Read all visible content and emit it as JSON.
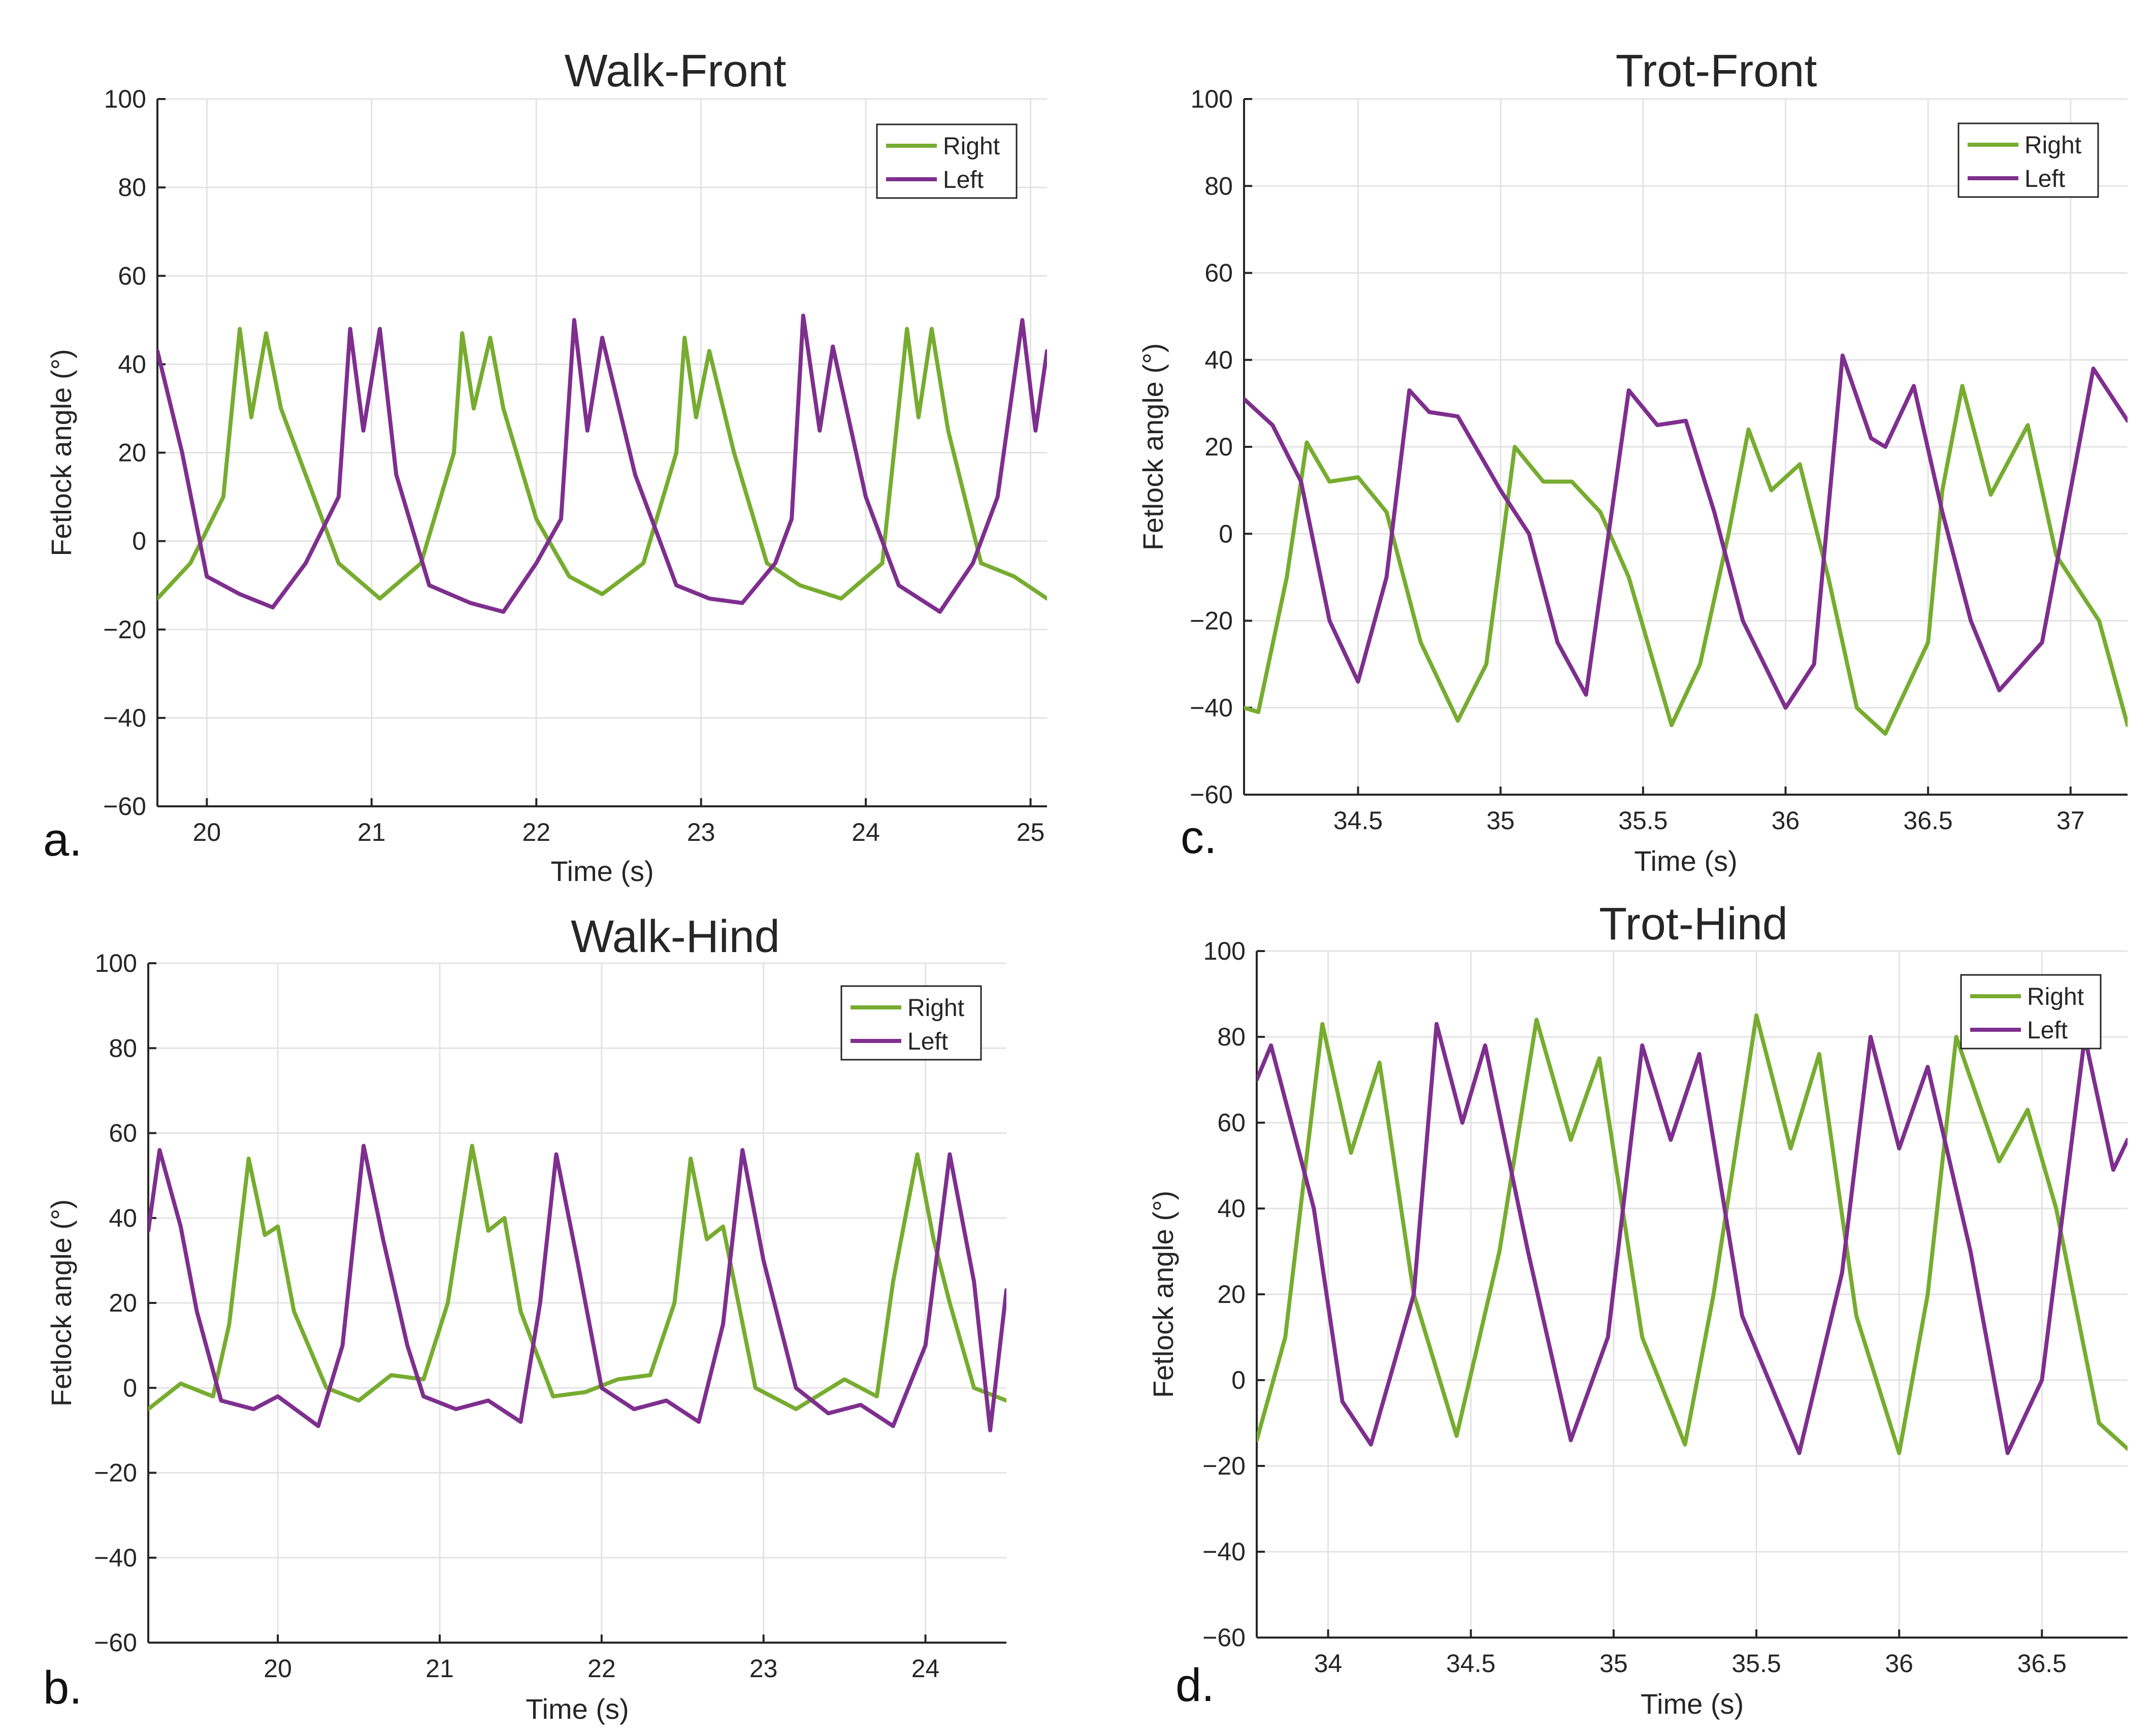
{
  "figure": {
    "series_colors": {
      "Right": "#77ac30",
      "Left": "#7e2f8e"
    }
  },
  "chart_data": [
    {
      "id": "a",
      "type": "line",
      "panel_label": "a.",
      "title": "Walk-Front",
      "xlabel": "Time (s)",
      "ylabel": "Fetlock angle (°)",
      "xlim": [
        19.7,
        25.1
      ],
      "ylim": [
        -60,
        100
      ],
      "xticks": [
        20,
        21,
        22,
        23,
        24,
        25
      ],
      "xtick_labels": [
        "20",
        "21",
        "22",
        "23",
        "24",
        "25"
      ],
      "yticks": [
        -60,
        -40,
        -20,
        0,
        20,
        40,
        60,
        80,
        100
      ],
      "ytick_labels": [
        "−60",
        "−40",
        "−20",
        "0",
        "20",
        "40",
        "60",
        "80",
        "100"
      ],
      "grid": true,
      "legend": {
        "position": "top-right",
        "entries": [
          "Right",
          "Left"
        ]
      },
      "series": [
        {
          "name": "Right",
          "color": "#77ac30",
          "x": [
            19.7,
            19.9,
            20.1,
            20.2,
            20.27,
            20.36,
            20.45,
            20.6,
            20.8,
            21.05,
            21.3,
            21.5,
            21.55,
            21.62,
            21.72,
            21.8,
            22.0,
            22.2,
            22.4,
            22.65,
            22.85,
            22.9,
            22.97,
            23.05,
            23.2,
            23.4,
            23.6,
            23.85,
            24.1,
            24.25,
            24.32,
            24.4,
            24.5,
            24.7,
            24.9,
            25.1
          ],
          "y": [
            -13,
            -5,
            10,
            48,
            28,
            47,
            30,
            15,
            -5,
            -13,
            -5,
            20,
            47,
            30,
            46,
            30,
            5,
            -8,
            -12,
            -5,
            20,
            46,
            28,
            43,
            20,
            -5,
            -10,
            -13,
            -5,
            48,
            28,
            48,
            25,
            -5,
            -8,
            -13
          ]
        },
        {
          "name": "Left",
          "color": "#7e2f8e",
          "x": [
            19.7,
            19.85,
            20.0,
            20.2,
            20.4,
            20.6,
            20.8,
            20.87,
            20.95,
            21.05,
            21.15,
            21.35,
            21.6,
            21.8,
            22.0,
            22.15,
            22.23,
            22.31,
            22.4,
            22.6,
            22.85,
            23.05,
            23.25,
            23.45,
            23.55,
            23.62,
            23.72,
            23.8,
            24.0,
            24.2,
            24.45,
            24.65,
            24.8,
            24.95,
            25.03,
            25.1
          ],
          "y": [
            43,
            20,
            -8,
            -12,
            -15,
            -5,
            10,
            48,
            25,
            48,
            15,
            -10,
            -14,
            -16,
            -5,
            5,
            50,
            25,
            46,
            15,
            -10,
            -13,
            -14,
            -5,
            5,
            51,
            25,
            44,
            10,
            -10,
            -16,
            -5,
            10,
            50,
            25,
            43
          ]
        }
      ]
    },
    {
      "id": "b",
      "type": "line",
      "panel_label": "b.",
      "title": "Walk-Hind",
      "xlabel": "Time (s)",
      "ylabel": "Fetlock angle (°)",
      "xlim": [
        19.2,
        24.5
      ],
      "ylim": [
        -60,
        100
      ],
      "xticks": [
        20,
        21,
        22,
        23,
        24
      ],
      "xtick_labels": [
        "20",
        "21",
        "22",
        "23",
        "24"
      ],
      "yticks": [
        -60,
        -40,
        -20,
        0,
        20,
        40,
        60,
        80,
        100
      ],
      "ytick_labels": [
        "−60",
        "−40",
        "−20",
        "0",
        "20",
        "40",
        "60",
        "80",
        "100"
      ],
      "grid": true,
      "legend": {
        "position": "top-right",
        "entries": [
          "Right",
          "Left"
        ]
      },
      "series": [
        {
          "name": "Right",
          "color": "#77ac30",
          "x": [
            19.2,
            19.4,
            19.6,
            19.7,
            19.82,
            19.92,
            20.0,
            20.1,
            20.3,
            20.5,
            20.7,
            20.9,
            21.05,
            21.2,
            21.3,
            21.4,
            21.5,
            21.7,
            21.9,
            22.1,
            22.3,
            22.45,
            22.55,
            22.65,
            22.75,
            22.95,
            23.2,
            23.5,
            23.7,
            23.8,
            23.95,
            24.05,
            24.15,
            24.3,
            24.5
          ],
          "y": [
            -5,
            1,
            -2,
            15,
            54,
            36,
            38,
            18,
            0,
            -3,
            3,
            2,
            20,
            57,
            37,
            40,
            18,
            -2,
            -1,
            2,
            3,
            20,
            54,
            35,
            38,
            0,
            -5,
            2,
            -2,
            25,
            55,
            35,
            20,
            0,
            -3
          ]
        },
        {
          "name": "Left",
          "color": "#7e2f8e",
          "x": [
            19.2,
            19.27,
            19.4,
            19.5,
            19.65,
            19.85,
            20.0,
            20.25,
            20.4,
            20.53,
            20.65,
            20.8,
            20.9,
            21.1,
            21.3,
            21.5,
            21.62,
            21.72,
            21.85,
            22.0,
            22.2,
            22.4,
            22.6,
            22.75,
            22.87,
            23.0,
            23.2,
            23.4,
            23.6,
            23.8,
            24.0,
            24.15,
            24.3,
            24.4,
            24.5
          ],
          "y": [
            37,
            56,
            38,
            18,
            -3,
            -5,
            -2,
            -9,
            10,
            57,
            35,
            10,
            -2,
            -5,
            -3,
            -8,
            20,
            55,
            30,
            0,
            -5,
            -3,
            -8,
            15,
            56,
            30,
            0,
            -6,
            -4,
            -9,
            10,
            55,
            25,
            -10,
            23
          ]
        }
      ]
    },
    {
      "id": "c",
      "type": "line",
      "panel_label": "c.",
      "title": "Trot-Front",
      "xlabel": "Time (s)",
      "ylabel": "Fetlock angle (°)",
      "xlim": [
        34.1,
        37.2
      ],
      "ylim": [
        -60,
        100
      ],
      "xticks": [
        34.5,
        35,
        35.5,
        36,
        36.5,
        37
      ],
      "xtick_labels": [
        "34.5",
        "35",
        "35.5",
        "36",
        "36.5",
        "37"
      ],
      "yticks": [
        -60,
        -40,
        -20,
        0,
        20,
        40,
        60,
        80,
        100
      ],
      "ytick_labels": [
        "−60",
        "−40",
        "−20",
        "0",
        "20",
        "40",
        "60",
        "80",
        "100"
      ],
      "grid": true,
      "legend": {
        "position": "top-right",
        "entries": [
          "Right",
          "Left"
        ]
      },
      "series": [
        {
          "name": "Right",
          "color": "#77ac30",
          "x": [
            34.1,
            34.15,
            34.25,
            34.32,
            34.4,
            34.5,
            34.6,
            34.72,
            34.85,
            34.95,
            35.05,
            35.15,
            35.25,
            35.35,
            35.45,
            35.6,
            35.7,
            35.8,
            35.87,
            35.95,
            36.05,
            36.15,
            36.25,
            36.35,
            36.5,
            36.55,
            36.62,
            36.72,
            36.85,
            36.95,
            37.1,
            37.2
          ],
          "y": [
            -40,
            -41,
            -10,
            21,
            12,
            13,
            5,
            -25,
            -43,
            -30,
            20,
            12,
            12,
            5,
            -10,
            -44,
            -30,
            0,
            24,
            10,
            16,
            -10,
            -40,
            -46,
            -25,
            10,
            34,
            9,
            25,
            -5,
            -20,
            -44
          ]
        },
        {
          "name": "Left",
          "color": "#7e2f8e",
          "x": [
            34.1,
            34.2,
            34.3,
            34.4,
            34.5,
            34.6,
            34.68,
            34.75,
            34.85,
            35.0,
            35.1,
            35.2,
            35.3,
            35.45,
            35.55,
            35.65,
            35.75,
            35.85,
            36.0,
            36.1,
            36.2,
            36.3,
            36.35,
            36.45,
            36.55,
            36.65,
            36.75,
            36.9,
            37.0,
            37.08,
            37.2
          ],
          "y": [
            31,
            25,
            12,
            -20,
            -34,
            -10,
            33,
            28,
            27,
            10,
            0,
            -25,
            -37,
            33,
            25,
            26,
            5,
            -20,
            -40,
            -30,
            41,
            22,
            20,
            34,
            5,
            -20,
            -36,
            -25,
            10,
            38,
            26
          ]
        }
      ]
    },
    {
      "id": "d",
      "type": "line",
      "panel_label": "d.",
      "title": "Trot-Hind",
      "xlabel": "Time (s)",
      "ylabel": "Fetlock angle (°)",
      "xlim": [
        33.75,
        36.8
      ],
      "ylim": [
        -60,
        100
      ],
      "xticks": [
        34,
        34.5,
        35,
        35.5,
        36,
        36.5
      ],
      "xtick_labels": [
        "34",
        "34.5",
        "35",
        "35.5",
        "36",
        "36.5"
      ],
      "yticks": [
        -60,
        -40,
        -20,
        0,
        20,
        40,
        60,
        80,
        100
      ],
      "ytick_labels": [
        "−60",
        "−40",
        "−20",
        "0",
        "20",
        "40",
        "60",
        "80",
        "100"
      ],
      "grid": true,
      "legend": {
        "position": "top-right",
        "entries": [
          "Right",
          "Left"
        ]
      },
      "series": [
        {
          "name": "Right",
          "color": "#77ac30",
          "x": [
            33.75,
            33.85,
            33.98,
            34.08,
            34.18,
            34.3,
            34.45,
            34.6,
            34.73,
            34.85,
            34.95,
            35.1,
            35.25,
            35.35,
            35.5,
            35.62,
            35.72,
            35.85,
            36.0,
            36.1,
            36.2,
            36.35,
            36.45,
            36.55,
            36.7,
            36.8
          ],
          "y": [
            -14,
            10,
            83,
            53,
            74,
            20,
            -13,
            30,
            84,
            56,
            75,
            10,
            -15,
            20,
            85,
            54,
            76,
            15,
            -17,
            20,
            80,
            51,
            63,
            40,
            -10,
            -16
          ]
        },
        {
          "name": "Left",
          "color": "#7e2f8e",
          "x": [
            33.75,
            33.8,
            33.95,
            34.05,
            34.15,
            34.3,
            34.38,
            34.47,
            34.55,
            34.7,
            34.85,
            34.98,
            35.1,
            35.2,
            35.3,
            35.45,
            35.65,
            35.8,
            35.9,
            36.0,
            36.1,
            36.25,
            36.38,
            36.5,
            36.65,
            36.75,
            36.8
          ],
          "y": [
            70,
            78,
            40,
            -5,
            -15,
            20,
            83,
            60,
            78,
            30,
            -14,
            10,
            78,
            56,
            76,
            15,
            -17,
            25,
            80,
            54,
            73,
            30,
            -17,
            0,
            80,
            49,
            56
          ]
        }
      ]
    }
  ]
}
